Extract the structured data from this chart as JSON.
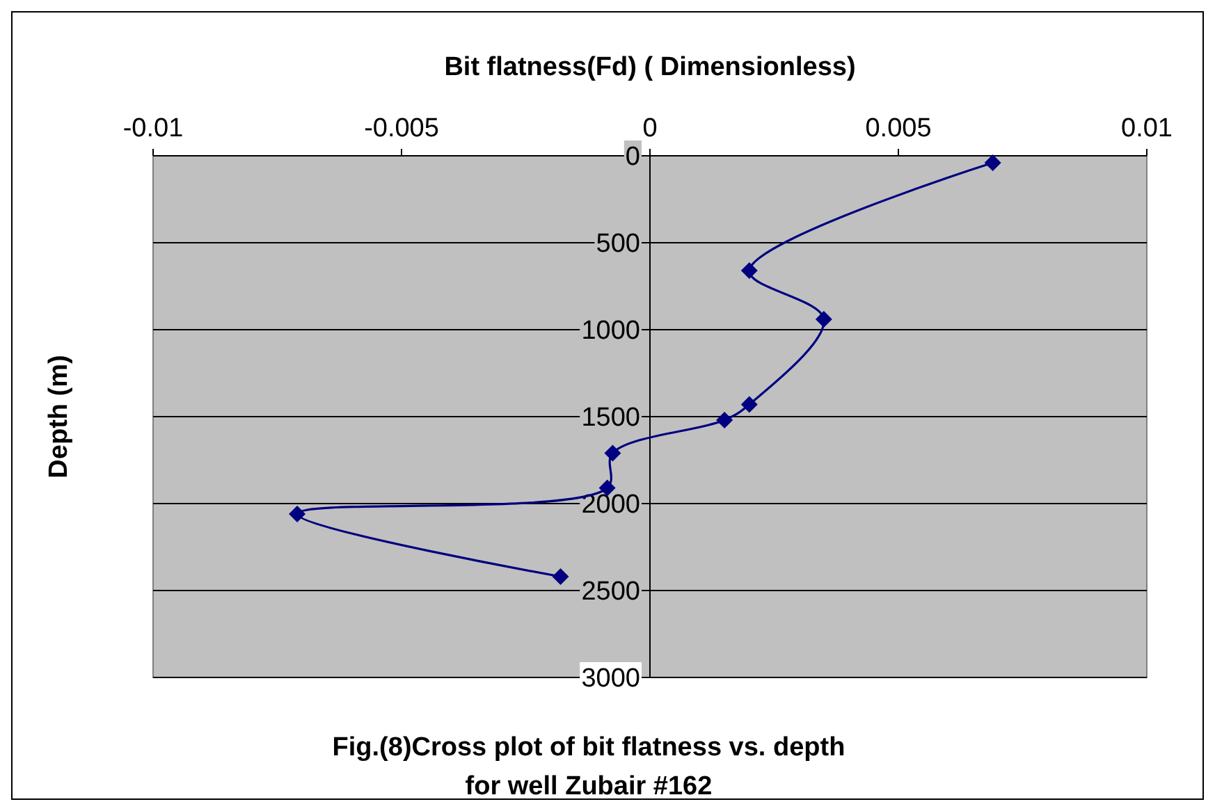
{
  "chart_data": {
    "type": "line",
    "xlabel": "Bit flatness(Fd)  ( Dimensionless)",
    "ylabel": "Depth (m)",
    "x": [
      0.0069,
      0.002,
      0.0035,
      0.002,
      0.0015,
      -0.00075,
      -0.00086,
      -0.0071,
      -0.0018
    ],
    "series": [
      {
        "color": "#000080",
        "values": [
          40,
          660,
          940,
          1430,
          1520,
          1710,
          1910,
          2060,
          2420
        ]
      }
    ],
    "xlim": [
      -0.01,
      0.01
    ],
    "xticks": [
      -0.01,
      -0.005,
      0,
      0.005,
      0.01
    ],
    "ylim": [
      3000,
      0
    ],
    "yticks": [
      0,
      500,
      1000,
      1500,
      2000,
      2500,
      3000
    ],
    "grid": "y",
    "marker": "diamond",
    "line_style": "solid",
    "annotations": [
      "Fig.(8)Cross plot of bit flatness vs. depth",
      "for well Zubair #162"
    ]
  }
}
